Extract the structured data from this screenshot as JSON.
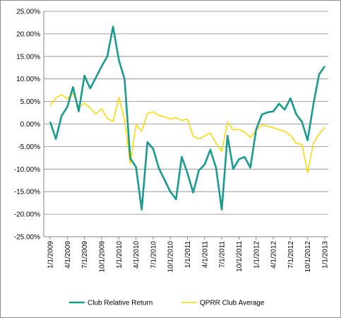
{
  "chart_data": {
    "type": "line",
    "title": "",
    "xlabel": "",
    "ylabel": "",
    "ylim": [
      -0.25,
      0.25
    ],
    "y_ticks": [
      "25.00%",
      "20.00%",
      "15.00%",
      "10.00%",
      "5.00%",
      "0.00%",
      "-5.00%",
      "-10.00%",
      "-15.00%",
      "-20.00%",
      "-25.00%"
    ],
    "x_tick_labels": [
      "1/1/2009",
      "4/1/2009",
      "7/1/2009",
      "10/1/2009",
      "1/1/2010",
      "4/1/2010",
      "7/1/2010",
      "10/1/2010",
      "1/1/2011",
      "4/1/2011",
      "7/1/2011",
      "10/1/2011",
      "1/1/2012",
      "4/1/2012",
      "7/1/2012",
      "10/1/2012",
      "1/1/2013"
    ],
    "x": [
      "2009-01",
      "2009-02",
      "2009-03",
      "2009-04",
      "2009-05",
      "2009-06",
      "2009-07",
      "2009-08",
      "2009-09",
      "2009-10",
      "2009-11",
      "2009-12",
      "2010-01",
      "2010-02",
      "2010-03",
      "2010-04",
      "2010-05",
      "2010-06",
      "2010-07",
      "2010-08",
      "2010-09",
      "2010-10",
      "2010-11",
      "2010-12",
      "2011-01",
      "2011-02",
      "2011-03",
      "2011-04",
      "2011-05",
      "2011-06",
      "2011-07",
      "2011-08",
      "2011-09",
      "2011-10",
      "2011-11",
      "2011-12",
      "2012-01",
      "2012-02",
      "2012-03",
      "2012-04",
      "2012-05",
      "2012-06",
      "2012-07",
      "2012-08",
      "2012-09",
      "2012-10",
      "2012-11",
      "2012-12",
      "2013-01"
    ],
    "legend_position": "bottom",
    "grid": "horizontal",
    "series": [
      {
        "name": "Club Relative Return",
        "color": "#1a9a8f",
        "values": [
          0.005,
          -0.033,
          0.018,
          0.038,
          0.082,
          0.028,
          0.107,
          0.079,
          0.103,
          0.128,
          0.15,
          0.216,
          0.142,
          0.1,
          -0.076,
          -0.095,
          -0.19,
          -0.04,
          -0.055,
          -0.098,
          -0.124,
          -0.15,
          -0.167,
          -0.073,
          -0.109,
          -0.152,
          -0.103,
          -0.09,
          -0.057,
          -0.097,
          -0.19,
          -0.026,
          -0.1,
          -0.078,
          -0.073,
          -0.097,
          -0.012,
          0.021,
          0.026,
          0.028,
          0.045,
          0.032,
          0.057,
          0.022,
          0.005,
          -0.036,
          0.043,
          0.11,
          0.128
        ]
      },
      {
        "name": "QPRR Club Average",
        "color": "#ffd700",
        "values": [
          0.042,
          0.058,
          0.065,
          0.056,
          0.068,
          0.038,
          0.046,
          0.036,
          0.022,
          0.034,
          0.012,
          0.006,
          0.058,
          0.01,
          -0.088,
          -0.002,
          -0.016,
          0.024,
          0.027,
          0.019,
          0.016,
          0.011,
          0.014,
          0.008,
          0.011,
          -0.027,
          -0.033,
          -0.026,
          -0.02,
          -0.043,
          -0.06,
          0.004,
          -0.013,
          -0.012,
          -0.018,
          -0.03,
          -0.014,
          -0.002,
          -0.005,
          -0.008,
          -0.013,
          -0.016,
          -0.025,
          -0.043,
          -0.045,
          -0.108,
          -0.043,
          -0.022,
          -0.008
        ]
      }
    ]
  }
}
